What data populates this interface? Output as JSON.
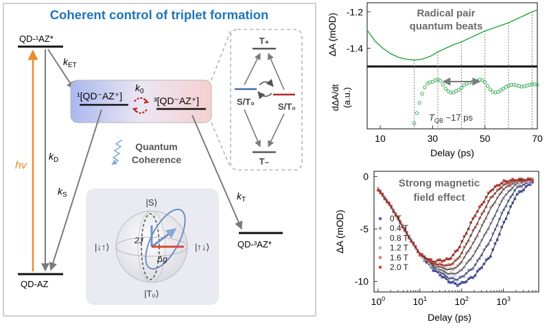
{
  "panel": {
    "title": "Coherent control of triplet formation",
    "title_color": "#1f74b9",
    "border_color": "#cfcfcf"
  },
  "states": {
    "excited": "QD-¹AZ*",
    "ground": "QD-AZ",
    "singlet_pair": "¹[QD⁻AZ⁺]",
    "triplet_pair": "³[QD⁻AZ⁺]",
    "triplet_product": "QD-³AZ*"
  },
  "rates": {
    "hv": "hv",
    "k_ET": "k_ET",
    "k_0": "k_0",
    "k_D": "k_D",
    "k_S": "k_S",
    "k_T": "k_T"
  },
  "quantum_label": [
    "Quantum",
    "Coherence"
  ],
  "triplet_sublevels": {
    "top": "T₊",
    "bottom": "T₋",
    "left": "S/T₀",
    "right": "S/T₀"
  },
  "bloch": {
    "top": "|S⟩",
    "bottom": "|T₀⟩",
    "left": "|↓↑⟩",
    "right": "|↑↓⟩",
    "j_label": "2J",
    "g_label": "Δg"
  },
  "colors": {
    "hv_arrow": "#e98b2e",
    "singlet_level": "#3b6ea5",
    "triplet_level": "#b32424",
    "green": "#3cab53",
    "series": [
      "#5560c9",
      "#8f95d8",
      "#b9b9c4",
      "#cba8a8",
      "#e07b6c",
      "#d9463a"
    ]
  },
  "chart_data": [
    {
      "type": "line",
      "title": "Radical pair quantum beats",
      "ylabel": "ΔA (mOD)",
      "x_ticks": [
        "10",
        "30",
        "50",
        "70"
      ],
      "y_ticks": [
        "-1.2",
        "-1.4"
      ],
      "xlim": [
        5,
        70
      ],
      "ylim": [
        -1.5,
        -1.15
      ],
      "x": [
        5,
        8,
        11,
        14,
        17,
        20,
        23,
        26,
        29,
        32,
        35,
        38,
        41,
        44,
        47,
        50,
        53,
        56,
        59,
        62,
        65,
        68,
        70
      ],
      "y": [
        -1.3,
        -1.36,
        -1.4,
        -1.43,
        -1.45,
        -1.46,
        -1.465,
        -1.46,
        -1.445,
        -1.42,
        -1.4,
        -1.38,
        -1.365,
        -1.345,
        -1.325,
        -1.305,
        -1.29,
        -1.275,
        -1.26,
        -1.24,
        -1.22,
        -1.2,
        -1.19
      ],
      "beat_markers": [
        23,
        32,
        41,
        50,
        59,
        68
      ]
    },
    {
      "type": "scatter",
      "ylabel": "dΔA/dt (a.u.)",
      "xlabel": "Delay (ps)",
      "annotation": "T_QB ~17 ps",
      "xlim": [
        5,
        70
      ],
      "ylim": [
        -1,
        1
      ],
      "x": [
        23,
        24,
        25,
        26,
        27,
        28,
        29,
        30,
        31,
        32,
        33,
        34,
        35,
        36,
        37,
        38,
        39,
        40,
        41,
        42,
        43,
        44,
        45,
        46,
        47,
        48,
        49,
        50,
        51,
        52,
        53,
        54,
        55,
        56,
        57,
        58,
        59,
        60,
        61,
        62,
        63,
        64,
        65,
        66,
        67,
        68,
        69,
        70
      ],
      "y": [
        -1.0,
        -0.6,
        -0.2,
        0.15,
        0.4,
        0.55,
        0.6,
        0.62,
        0.68,
        0.7,
        0.66,
        0.5,
        0.35,
        0.25,
        0.2,
        0.2,
        0.25,
        0.3,
        0.38,
        0.48,
        0.55,
        0.58,
        0.6,
        0.62,
        0.65,
        0.7,
        0.68,
        0.6,
        0.45,
        0.32,
        0.22,
        0.2,
        0.22,
        0.28,
        0.35,
        0.42,
        0.46,
        0.5,
        0.5,
        0.48,
        0.45,
        0.43,
        0.44,
        0.47,
        0.5,
        0.53,
        0.52,
        0.5
      ]
    },
    {
      "type": "scatter",
      "title": "Strong magnetic field effect",
      "ylabel": "ΔA (mOD)",
      "xlabel": "Delay (ps)",
      "x_scale": "log",
      "x_ticks": [
        "10⁰",
        "10¹",
        "10²",
        "10³"
      ],
      "y_ticks": [
        "0",
        "-5",
        "-10"
      ],
      "xlim": [
        0.8,
        7000
      ],
      "ylim": [
        -11,
        0.5
      ],
      "series": [
        {
          "name": "0 T",
          "x": [
            1,
            2,
            5,
            10,
            20,
            50,
            80,
            100,
            200,
            500,
            1000,
            2000,
            5000
          ],
          "y": [
            -1.2,
            -2.8,
            -5.5,
            -7.4,
            -8.8,
            -10.0,
            -10.3,
            -10.2,
            -9.5,
            -7.5,
            -4.5,
            -1.8,
            -0.5
          ]
        },
        {
          "name": "0.4 T",
          "x": [
            1,
            2,
            5,
            10,
            20,
            50,
            80,
            100,
            200,
            500,
            1000,
            2000,
            5000
          ],
          "y": [
            -1.2,
            -2.8,
            -5.5,
            -7.4,
            -8.6,
            -9.7,
            -9.8,
            -9.6,
            -8.6,
            -6.0,
            -3.2,
            -1.1,
            -0.4
          ]
        },
        {
          "name": "0.8 T",
          "x": [
            1,
            2,
            5,
            10,
            20,
            50,
            80,
            100,
            200,
            500,
            1000,
            2000,
            5000
          ],
          "y": [
            -1.2,
            -2.8,
            -5.5,
            -7.4,
            -8.5,
            -9.3,
            -9.2,
            -8.9,
            -7.4,
            -4.5,
            -2.0,
            -0.7,
            -0.3
          ]
        },
        {
          "name": "1.2 T",
          "x": [
            1,
            2,
            5,
            10,
            20,
            50,
            80,
            100,
            200,
            500,
            1000,
            2000,
            5000
          ],
          "y": [
            -1.2,
            -2.8,
            -5.5,
            -7.4,
            -8.4,
            -8.9,
            -8.6,
            -8.1,
            -6.2,
            -3.0,
            -1.2,
            -0.5,
            -0.3
          ]
        },
        {
          "name": "1.6 T",
          "x": [
            1,
            2,
            5,
            10,
            20,
            50,
            80,
            100,
            200,
            500,
            1000,
            2000,
            5000
          ],
          "y": [
            -1.2,
            -2.8,
            -5.5,
            -7.4,
            -8.3,
            -8.5,
            -7.9,
            -7.3,
            -5.0,
            -2.0,
            -0.8,
            -0.4,
            -0.3
          ]
        },
        {
          "name": "2.0 T",
          "x": [
            1,
            2,
            5,
            10,
            20,
            50,
            80,
            100,
            200,
            500,
            1000,
            2000,
            5000
          ],
          "y": [
            -1.2,
            -2.8,
            -5.5,
            -7.4,
            -8.1,
            -7.9,
            -7.0,
            -6.3,
            -3.8,
            -1.3,
            -0.5,
            -0.3,
            -0.3
          ]
        }
      ]
    }
  ]
}
